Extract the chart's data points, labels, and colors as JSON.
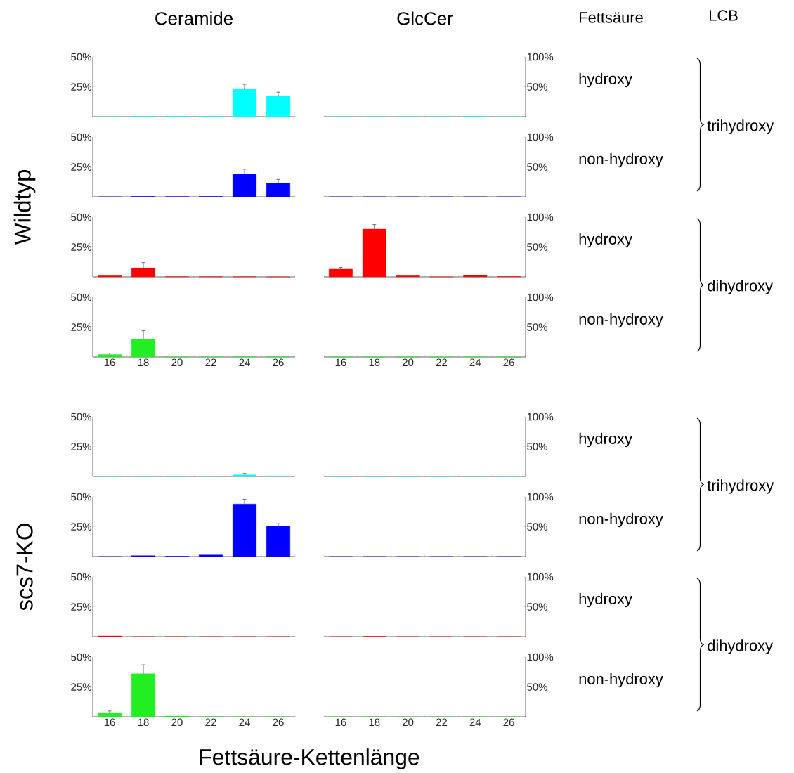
{
  "chart_data": [
    {
      "type": "bar",
      "title": "Ceramide",
      "ylabel": "Wildtyp",
      "categories": [
        "16",
        "18",
        "20",
        "22",
        "24",
        "26"
      ],
      "values": [
        0,
        0.3,
        0.3,
        0.3,
        23,
        17
      ],
      "errors": [
        null,
        null,
        null,
        null,
        4,
        3.5
      ],
      "color": "#00ffff",
      "ylim": [
        0,
        50
      ],
      "yticks": [
        {
          "value": 25,
          "label": "25%"
        },
        {
          "value": 50,
          "label": "50%"
        }
      ],
      "tick_labels": "y"
    },
    {
      "type": "bar",
      "title": "GlcCer",
      "categories": [
        "16",
        "18",
        "20",
        "22",
        "24",
        "26"
      ],
      "values": [
        0,
        0,
        0,
        0,
        0.5,
        0
      ],
      "color": "#00ffff",
      "ylim": [
        0,
        100
      ],
      "yticks": [
        {
          "value": 50,
          "label": "50%"
        },
        {
          "value": 100,
          "label": "100%"
        }
      ],
      "tick_labels": "y",
      "annotations": [
        "Fettsäure",
        "LCB",
        "hydroxy",
        "trihydroxy"
      ]
    },
    {
      "type": "bar",
      "categories": [
        "16",
        "18",
        "20",
        "22",
        "24",
        "26"
      ],
      "values": [
        0,
        0.3,
        0.2,
        0.3,
        19,
        11.5
      ],
      "errors": [
        null,
        null,
        null,
        null,
        4,
        3
      ],
      "color": "#0000ff",
      "ylim": [
        0,
        50
      ],
      "yticks": [
        {
          "value": 25,
          "label": "25%"
        },
        {
          "value": 50,
          "label": "50%"
        }
      ],
      "tick_labels": "y"
    },
    {
      "type": "bar",
      "categories": [
        "16",
        "18",
        "20",
        "22",
        "24",
        "26"
      ],
      "values": [
        0,
        0,
        0,
        0,
        0,
        0
      ],
      "color": "#0000ff",
      "ylim": [
        0,
        100
      ],
      "yticks": [
        {
          "value": 50,
          "label": "50%"
        },
        {
          "value": 100,
          "label": "100%"
        }
      ],
      "tick_labels": "y",
      "annotations": [
        "non-hydroxy"
      ]
    },
    {
      "type": "bar",
      "categories": [
        "16",
        "18",
        "20",
        "22",
        "24",
        "26"
      ],
      "values": [
        1,
        7.5,
        0.2,
        0.2,
        0.2,
        0
      ],
      "errors": [
        null,
        4.5,
        null,
        null,
        null,
        null
      ],
      "color": "#ff0000",
      "ylim": [
        0,
        50
      ],
      "yticks": [
        {
          "value": 25,
          "label": "25%"
        },
        {
          "value": 50,
          "label": "50%"
        }
      ],
      "tick_labels": "y"
    },
    {
      "type": "bar",
      "categories": [
        "16",
        "18",
        "20",
        "22",
        "24",
        "26"
      ],
      "values": [
        13,
        80,
        2,
        0,
        3,
        0.5
      ],
      "errors": [
        3,
        7.5,
        null,
        null,
        null,
        null
      ],
      "color": "#ff0000",
      "ylim": [
        0,
        100
      ],
      "yticks": [
        {
          "value": 50,
          "label": "50%"
        },
        {
          "value": 100,
          "label": "100%"
        }
      ],
      "tick_labels": "y",
      "annotations": [
        "hydroxy",
        "dihydroxy"
      ]
    },
    {
      "type": "bar",
      "categories": [
        "16",
        "18",
        "20",
        "22",
        "24",
        "26"
      ],
      "values": [
        2,
        15,
        0,
        0,
        0.2,
        0.2
      ],
      "errors": [
        1.2,
        7,
        null,
        null,
        null,
        null
      ],
      "color": "#22ee22",
      "ylim": [
        0,
        50
      ],
      "yticks": [
        {
          "value": 25,
          "label": "25%"
        },
        {
          "value": 50,
          "label": "50%"
        }
      ]
    },
    {
      "type": "bar",
      "categories": [
        "16",
        "18",
        "20",
        "22",
        "24",
        "26"
      ],
      "values": [
        0,
        0,
        0,
        0,
        0,
        0
      ],
      "color": "#22ee22",
      "ylim": [
        0,
        100
      ],
      "yticks": [
        {
          "value": 50,
          "label": "50%"
        },
        {
          "value": 100,
          "label": "100%"
        }
      ],
      "annotations": [
        "non-hydroxy"
      ]
    },
    {
      "type": "bar",
      "ylabel": "scs7-KO",
      "categories": [
        "16",
        "18",
        "20",
        "22",
        "24",
        "26"
      ],
      "values": [
        0,
        0,
        0,
        0.3,
        1.4,
        0.5
      ],
      "errors": [
        null,
        null,
        null,
        null,
        1.1,
        null
      ],
      "color": "#00ffff",
      "ylim": [
        0,
        50
      ],
      "yticks": [
        {
          "value": 25,
          "label": "25%"
        },
        {
          "value": 50,
          "label": "50%"
        }
      ],
      "tick_labels": "y"
    },
    {
      "type": "bar",
      "categories": [
        "16",
        "18",
        "20",
        "22",
        "24",
        "26"
      ],
      "values": [
        0,
        0,
        0,
        0,
        0.5,
        0
      ],
      "color": "#00ffff",
      "ylim": [
        0,
        100
      ],
      "yticks": [
        {
          "value": 50,
          "label": "50%"
        },
        {
          "value": 100,
          "label": "100%"
        }
      ],
      "tick_labels": "y",
      "annotations": [
        "hydroxy",
        "trihydroxy"
      ]
    },
    {
      "type": "bar",
      "categories": [
        "16",
        "18",
        "20",
        "22",
        "24",
        "26"
      ],
      "values": [
        0,
        0.8,
        0.3,
        1.4,
        44,
        25.5
      ],
      "errors": [
        null,
        null,
        null,
        null,
        4,
        2
      ],
      "color": "#0000ff",
      "ylim": [
        0,
        50
      ],
      "yticks": [
        {
          "value": 25,
          "label": "25%"
        },
        {
          "value": 50,
          "label": "50%"
        }
      ],
      "tick_labels": "y"
    },
    {
      "type": "bar",
      "categories": [
        "16",
        "18",
        "20",
        "22",
        "24",
        "26"
      ],
      "values": [
        0,
        0,
        0,
        0,
        0,
        0
      ],
      "color": "#0000ff",
      "ylim": [
        0,
        100
      ],
      "yticks": [
        {
          "value": 50,
          "label": "50%"
        },
        {
          "value": 100,
          "label": "100%"
        }
      ],
      "tick_labels": "y",
      "annotations": [
        "non-hydroxy"
      ]
    },
    {
      "type": "bar",
      "categories": [
        "16",
        "18",
        "20",
        "22",
        "24",
        "26"
      ],
      "values": [
        0.6,
        0,
        0,
        0,
        0,
        0
      ],
      "color": "#ff0000",
      "ylim": [
        0,
        50
      ],
      "yticks": [
        {
          "value": 25,
          "label": "25%"
        },
        {
          "value": 50,
          "label": "50%"
        }
      ],
      "tick_labels": "y"
    },
    {
      "type": "bar",
      "categories": [
        "16",
        "18",
        "20",
        "22",
        "24",
        "26"
      ],
      "values": [
        0,
        0.5,
        0,
        0,
        0,
        0
      ],
      "color": "#ff0000",
      "ylim": [
        0,
        100
      ],
      "yticks": [
        {
          "value": 50,
          "label": "50%"
        },
        {
          "value": 100,
          "label": "100%"
        }
      ],
      "tick_labels": "y",
      "annotations": [
        "hydroxy",
        "dihydroxy"
      ]
    },
    {
      "type": "bar",
      "xlabel": "Fettsäure-Kettenlänge",
      "categories": [
        "16",
        "18",
        "20",
        "22",
        "24",
        "26"
      ],
      "values": [
        3.5,
        36,
        0.6,
        0.2,
        0,
        0
      ],
      "errors": [
        1.3,
        7.5,
        null,
        null,
        null,
        null
      ],
      "color": "#22ee22",
      "ylim": [
        0,
        50
      ],
      "yticks": [
        {
          "value": 25,
          "label": "25%"
        },
        {
          "value": 50,
          "label": "50%"
        }
      ]
    },
    {
      "type": "bar",
      "categories": [
        "16",
        "18",
        "20",
        "22",
        "24",
        "26"
      ],
      "values": [
        0,
        0,
        0,
        0,
        0,
        0
      ],
      "color": "#22ee22",
      "ylim": [
        0,
        100
      ],
      "yticks": [
        {
          "value": 50,
          "label": "50%"
        },
        {
          "value": 100,
          "label": "100%"
        }
      ],
      "annotations": [
        "non-hydroxy"
      ]
    }
  ]
}
